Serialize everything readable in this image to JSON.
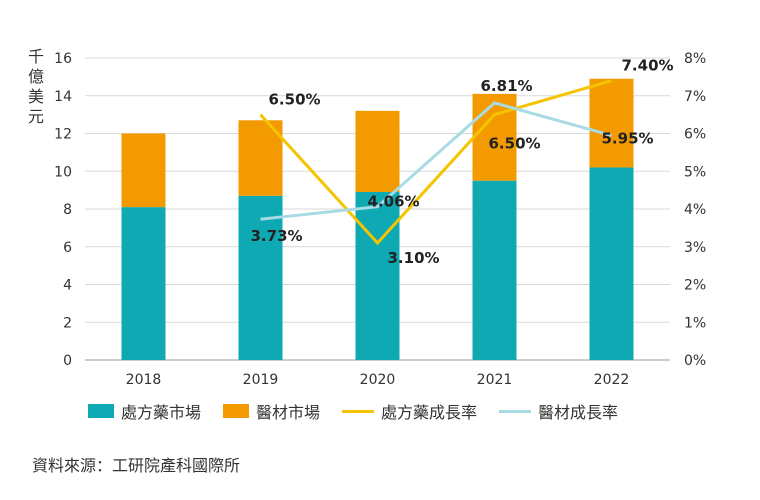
{
  "chart_data": {
    "type": "bar+line",
    "categories": [
      "2018",
      "2019",
      "2020",
      "2021",
      "2022"
    ],
    "y_left_label": "千億美元",
    "y_left_range": [
      0,
      16
    ],
    "y_left_ticks": [
      "0",
      "2",
      "4",
      "6",
      "8",
      "10",
      "12",
      "14",
      "16"
    ],
    "y_right_range": [
      0,
      8
    ],
    "y_right_ticks": [
      "0%",
      "1%",
      "2%",
      "3%",
      "4%",
      "5%",
      "6%",
      "7%",
      "8%"
    ],
    "bar_series": [
      {
        "name": "處方藥市場",
        "color": "#0fa9b4",
        "values": [
          8.1,
          8.7,
          8.9,
          9.5,
          10.2
        ]
      },
      {
        "name": "醫材市場",
        "color": "#f39a00",
        "values": [
          3.9,
          4.0,
          4.3,
          4.6,
          4.7
        ]
      }
    ],
    "line_series": [
      {
        "name": "處方藥成長率",
        "color": "#f5c400",
        "values": [
          null,
          6.5,
          3.1,
          6.5,
          7.4
        ],
        "labels": [
          null,
          "6.50%",
          "3.10%",
          "6.50%",
          "7.40%"
        ]
      },
      {
        "name": "醫材成長率",
        "color": "#a8dbe4",
        "values": [
          null,
          3.73,
          4.06,
          6.81,
          5.95
        ],
        "labels": [
          null,
          "3.73%",
          "4.06%",
          "6.81%",
          "5.95%"
        ]
      }
    ]
  },
  "legend": {
    "item1": "處方藥市場",
    "item2": "醫材市場",
    "item3": "處方藥成長率",
    "item4": "醫材成長率",
    "color1": "#0fa9b4",
    "color2": "#f39a00",
    "color3": "#f5c400",
    "color4": "#a8dbe4"
  },
  "source": "資料來源：工研院產科國際所"
}
